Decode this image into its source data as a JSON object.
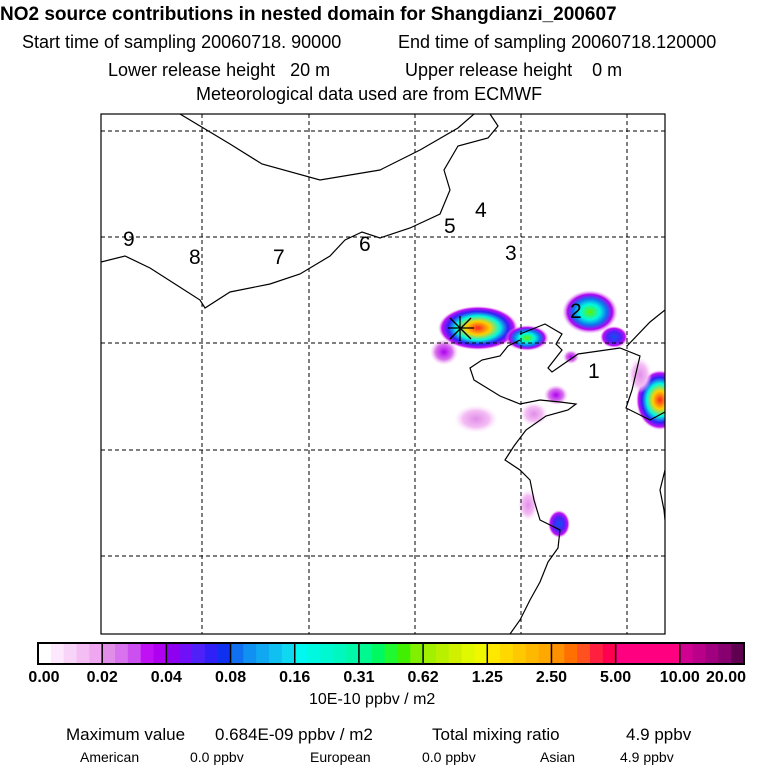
{
  "title": "NO2 source contributions in nested domain for Shangdianzi_200607",
  "start_label": "Start time of sampling 20060718. 90000",
  "end_label": "End time of sampling 20060718.120000",
  "lower_label": "Lower release height   20 m",
  "upper_label": "Upper release height    0 m",
  "met_label": "Meteorological data used are from ECMWF",
  "map": {
    "receptor_marker": "star",
    "track_labels": [
      "1",
      "2",
      "3",
      "4",
      "5",
      "6",
      "7",
      "8",
      "9"
    ]
  },
  "colorbar": {
    "labels": [
      "0.00",
      "0.02",
      "0.04",
      "0.08",
      "0.16",
      "0.31",
      "0.62",
      "1.25",
      "2.50",
      "5.00",
      "10.00",
      "20.00"
    ],
    "colors": [
      [
        "#ffffff",
        "#fde8fd",
        "#f9d4f9",
        "#f4bdf4",
        "#efa8ef"
      ],
      [
        "#e08ee8",
        "#d872ee",
        "#cc50f0",
        "#c010f4",
        "#b000f0"
      ],
      [
        "#9000f0",
        "#7010f8",
        "#5020f8",
        "#3020f8",
        "#1030f0"
      ],
      [
        "#1070f0",
        "#1090f0",
        "#10a8f0",
        "#10c0f0",
        "#10d8f0"
      ],
      [
        "#00f8f0",
        "#00f8e0",
        "#00f8d0",
        "#00f8c0",
        "#00f8a8"
      ],
      [
        "#00f890",
        "#00f860",
        "#20f830",
        "#40f000",
        "#80f000"
      ],
      [
        "#a0f000",
        "#b8f000",
        "#d0f000",
        "#e0f800",
        "#f0f800"
      ],
      [
        "#ffe800",
        "#ffd800",
        "#ffc800",
        "#ffb800",
        "#ffa800"
      ],
      [
        "#ff9000",
        "#ff7000",
        "#ff5020",
        "#ff2040",
        "#ff0050"
      ],
      [
        "#ff0080",
        "#ff0080",
        "#ff0080",
        "#ff0080",
        "#ff0080"
      ],
      [
        "#d00090",
        "#b80088",
        "#a00080",
        "#880070",
        "#600050"
      ]
    ],
    "units": "10E-10 ppbv / m2"
  },
  "stats": {
    "max_label": "Maximum value",
    "max_value": "0.684E-09 ppbv / m2",
    "total_label": "Total mixing ratio",
    "total_value": "4.9 ppbv",
    "american_label": "American",
    "american_value": "0.0 ppbv",
    "european_label": "European",
    "european_value": "0.0 ppbv",
    "asian_label": "Asian",
    "asian_value": "4.9 ppbv"
  }
}
